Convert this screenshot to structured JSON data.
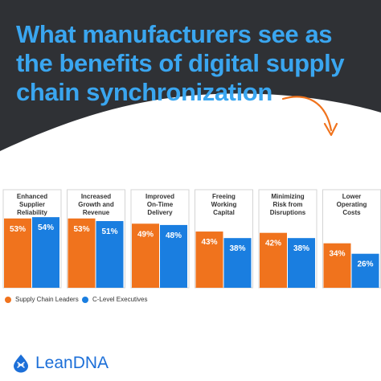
{
  "header": {
    "title_lines": [
      "What manufacturers see as",
      "the benefits of digital supply",
      "chain synchronization"
    ],
    "bg_color": "#2f3135",
    "title_color": "#3aa6f0",
    "arrow_color": "#f0731d"
  },
  "chart_data": {
    "type": "bar",
    "categories": [
      [
        "Enhanced",
        "Supplier",
        "Reliability"
      ],
      [
        "Increased",
        "Growth and",
        "Revenue"
      ],
      [
        "Improved",
        "On-Time",
        "Delivery"
      ],
      [
        "Freeing",
        "Working",
        "Capital"
      ],
      [
        "Minimizing",
        "Risk from",
        "Disruptions"
      ],
      [
        "Lower",
        "Operating",
        "Costs"
      ]
    ],
    "series": [
      {
        "name": "Supply Chain Leaders",
        "color": "#f0731d",
        "values": [
          53,
          53,
          49,
          43,
          42,
          34
        ],
        "labels": [
          "53%",
          "53%",
          "49%",
          "43%",
          "42%",
          "34%"
        ]
      },
      {
        "name": "C-Level Executives",
        "color": "#1a7ee0",
        "values": [
          54,
          51,
          48,
          38,
          38,
          26
        ],
        "labels": [
          "54%",
          "51%",
          "48%",
          "38%",
          "38%",
          "26%"
        ]
      }
    ],
    "ylim": [
      0,
      75
    ],
    "legend": "bottom-left",
    "grid": false
  },
  "legend": {
    "leaders_label": "Supply Chain Leaders",
    "executives_label": "C-Level Executives"
  },
  "logo": {
    "text": "LeanDNA",
    "icon": "dna-droplet-icon",
    "color": "#1c6fd8"
  }
}
